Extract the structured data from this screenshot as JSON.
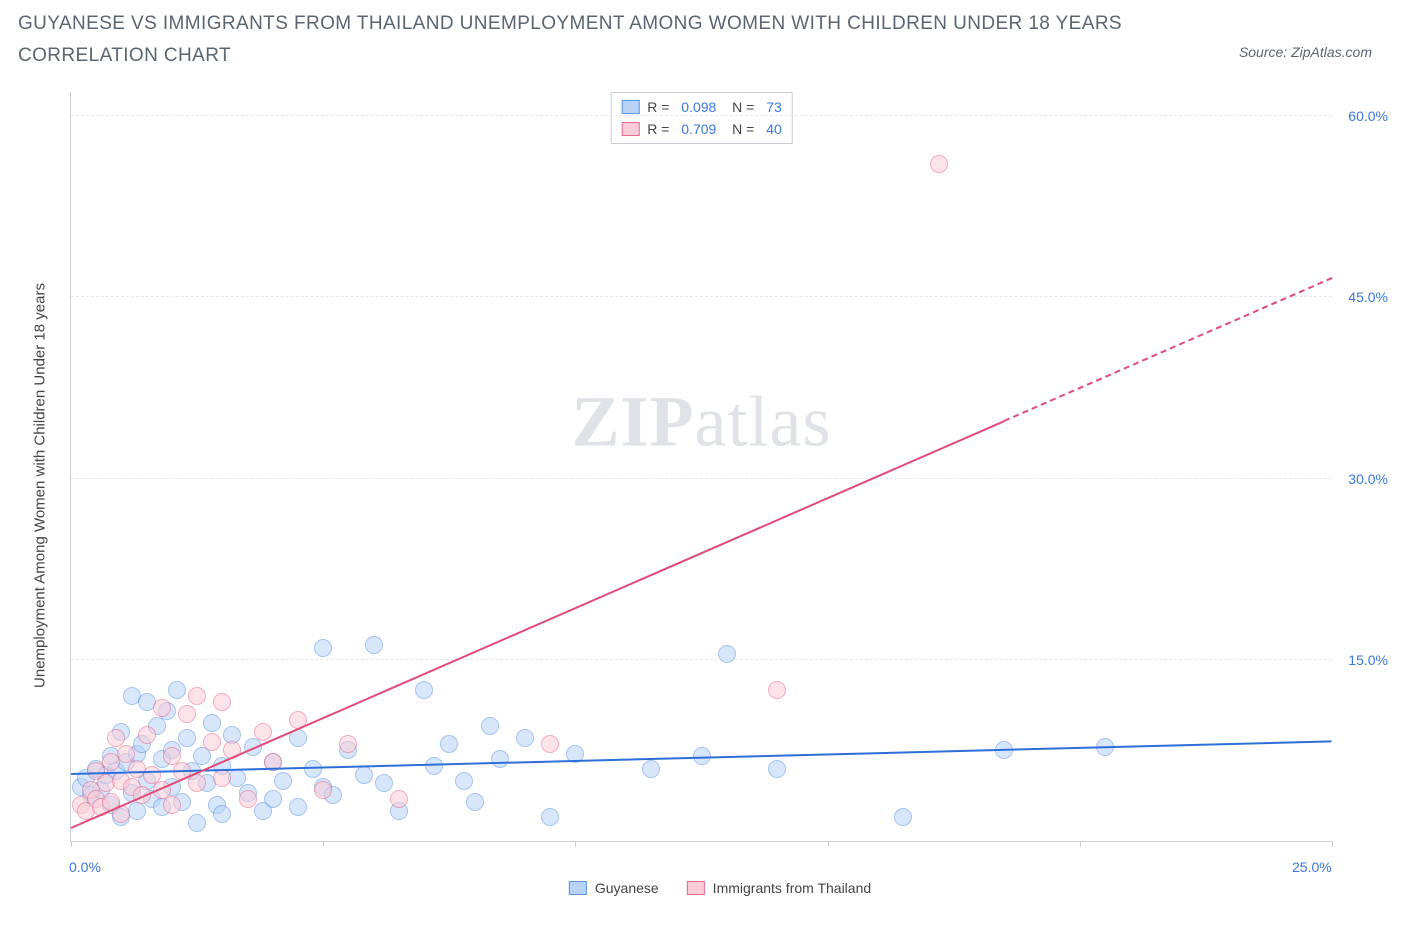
{
  "header": {
    "title": "GUYANESE VS IMMIGRANTS FROM THAILAND UNEMPLOYMENT AMONG WOMEN WITH CHILDREN UNDER 18 YEARS CORRELATION CHART",
    "source_label": "Source: ZipAtlas.com"
  },
  "chart": {
    "type": "scatter",
    "y_axis_label": "Unemployment Among Women with Children Under 18 years",
    "xlim": [
      0,
      25
    ],
    "ylim": [
      0,
      62
    ],
    "x_ticks": [
      0,
      5,
      10,
      15,
      20,
      25
    ],
    "x_tick_labels": {
      "0": "0.0%",
      "25": "25.0%"
    },
    "y_ticks": [
      15,
      30,
      45,
      60
    ],
    "y_tick_labels": [
      "15.0%",
      "30.0%",
      "45.0%",
      "60.0%"
    ],
    "grid_color": "#e5e8eb",
    "axis_color": "#c9ced4",
    "background_color": "#ffffff",
    "tick_label_color": "#3a78e0",
    "axis_label_color": "#444444",
    "title_color": "#5a6572",
    "title_fontsize": 19,
    "label_fontsize": 15,
    "tick_fontsize": 14,
    "point_radius": 9,
    "point_opacity": 0.55,
    "watermark_prefix": "ZIP",
    "watermark_suffix": "atlas",
    "series": [
      {
        "name": "Guyanese",
        "fill": "#b9d3f6",
        "stroke": "#5a94e2",
        "line_color": "#2d6fd9",
        "R": "0.098",
        "N": "73",
        "regression": {
          "x1": 0,
          "y1": 5.5,
          "x2": 25,
          "y2": 8.2,
          "solid_until_x": 25
        },
        "points": [
          [
            0.2,
            4.5
          ],
          [
            0.3,
            5.2
          ],
          [
            0.4,
            3.8
          ],
          [
            0.5,
            6.0
          ],
          [
            0.6,
            4.2
          ],
          [
            0.7,
            5.5
          ],
          [
            0.8,
            7.0
          ],
          [
            0.8,
            3.0
          ],
          [
            0.9,
            5.8
          ],
          [
            1.0,
            9.0
          ],
          [
            1.0,
            2.0
          ],
          [
            1.1,
            6.5
          ],
          [
            1.2,
            12.0
          ],
          [
            1.2,
            4.0
          ],
          [
            1.3,
            7.2
          ],
          [
            1.3,
            2.5
          ],
          [
            1.4,
            8.0
          ],
          [
            1.5,
            11.5
          ],
          [
            1.5,
            5.0
          ],
          [
            1.6,
            3.5
          ],
          [
            1.7,
            9.5
          ],
          [
            1.8,
            6.8
          ],
          [
            1.8,
            2.8
          ],
          [
            1.9,
            10.8
          ],
          [
            2.0,
            4.5
          ],
          [
            2.0,
            7.5
          ],
          [
            2.1,
            12.5
          ],
          [
            2.2,
            3.2
          ],
          [
            2.3,
            8.5
          ],
          [
            2.4,
            5.8
          ],
          [
            2.5,
            1.5
          ],
          [
            2.6,
            7.0
          ],
          [
            2.7,
            4.8
          ],
          [
            2.8,
            9.8
          ],
          [
            2.9,
            3.0
          ],
          [
            3.0,
            6.2
          ],
          [
            3.0,
            2.2
          ],
          [
            3.2,
            8.8
          ],
          [
            3.3,
            5.2
          ],
          [
            3.5,
            4.0
          ],
          [
            3.6,
            7.8
          ],
          [
            3.8,
            2.5
          ],
          [
            4.0,
            6.5
          ],
          [
            4.0,
            3.5
          ],
          [
            4.2,
            5.0
          ],
          [
            4.5,
            8.5
          ],
          [
            4.5,
            2.8
          ],
          [
            4.8,
            6.0
          ],
          [
            5.0,
            4.5
          ],
          [
            5.0,
            16.0
          ],
          [
            5.2,
            3.8
          ],
          [
            5.5,
            7.5
          ],
          [
            5.8,
            5.5
          ],
          [
            6.0,
            16.2
          ],
          [
            6.2,
            4.8
          ],
          [
            6.5,
            2.5
          ],
          [
            7.0,
            12.5
          ],
          [
            7.2,
            6.2
          ],
          [
            7.5,
            8.0
          ],
          [
            7.8,
            5.0
          ],
          [
            8.0,
            3.2
          ],
          [
            8.3,
            9.5
          ],
          [
            8.5,
            6.8
          ],
          [
            9.0,
            8.5
          ],
          [
            9.5,
            2.0
          ],
          [
            10.0,
            7.2
          ],
          [
            11.5,
            6.0
          ],
          [
            12.5,
            7.0
          ],
          [
            13.0,
            15.5
          ],
          [
            14.0,
            6.0
          ],
          [
            16.5,
            2.0
          ],
          [
            18.5,
            7.5
          ],
          [
            20.5,
            7.8
          ]
        ]
      },
      {
        "name": "Immigrants from Thailand",
        "fill": "#f9cdd8",
        "stroke": "#e76b8d",
        "line_color": "#e04b78",
        "R": "0.709",
        "N": "40",
        "regression": {
          "x1": 0,
          "y1": 1.0,
          "x2": 25,
          "y2": 46.5,
          "solid_until_x": 18.5
        },
        "points": [
          [
            0.2,
            3.0
          ],
          [
            0.3,
            2.5
          ],
          [
            0.4,
            4.2
          ],
          [
            0.5,
            3.5
          ],
          [
            0.5,
            5.8
          ],
          [
            0.6,
            2.8
          ],
          [
            0.7,
            4.8
          ],
          [
            0.8,
            6.5
          ],
          [
            0.8,
            3.2
          ],
          [
            0.9,
            8.5
          ],
          [
            1.0,
            5.0
          ],
          [
            1.0,
            2.2
          ],
          [
            1.1,
            7.2
          ],
          [
            1.2,
            4.5
          ],
          [
            1.3,
            6.0
          ],
          [
            1.4,
            3.8
          ],
          [
            1.5,
            8.8
          ],
          [
            1.6,
            5.5
          ],
          [
            1.8,
            11.0
          ],
          [
            1.8,
            4.2
          ],
          [
            2.0,
            7.0
          ],
          [
            2.0,
            3.0
          ],
          [
            2.2,
            5.8
          ],
          [
            2.3,
            10.5
          ],
          [
            2.5,
            12.0
          ],
          [
            2.5,
            4.8
          ],
          [
            2.8,
            8.2
          ],
          [
            3.0,
            11.5
          ],
          [
            3.0,
            5.2
          ],
          [
            3.2,
            7.5
          ],
          [
            3.5,
            3.5
          ],
          [
            3.8,
            9.0
          ],
          [
            4.0,
            6.5
          ],
          [
            4.5,
            10.0
          ],
          [
            5.0,
            4.2
          ],
          [
            5.5,
            8.0
          ],
          [
            6.5,
            3.5
          ],
          [
            9.5,
            8.0
          ],
          [
            14.0,
            12.5
          ],
          [
            17.2,
            56.0
          ]
        ]
      }
    ],
    "legend": {
      "series1": "Guyanese",
      "series2": "Immigrants from Thailand"
    }
  }
}
